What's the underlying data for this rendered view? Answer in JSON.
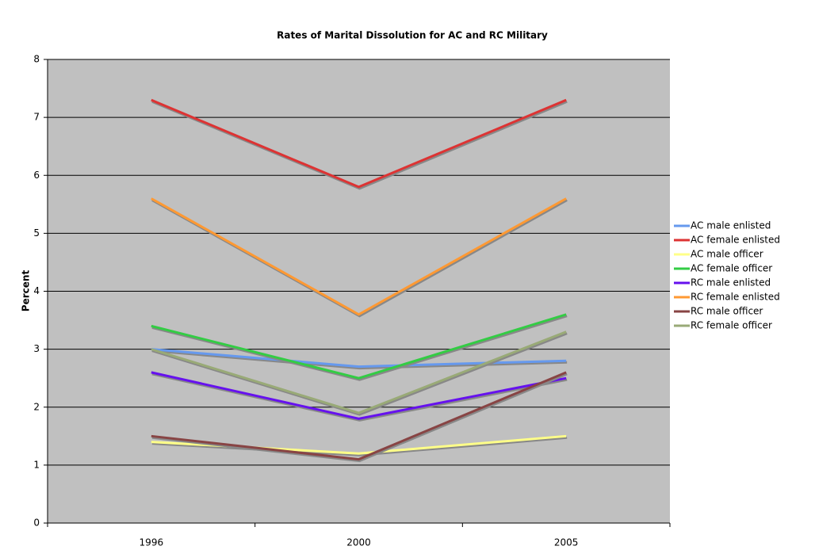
{
  "chart_data": {
    "type": "line",
    "title": "Rates of Marital Dissolution for AC and RC Military",
    "y_label": "Percent",
    "categories": [
      "1996",
      "2000",
      "2005"
    ],
    "series": [
      {
        "name": "AC male enlisted",
        "color": "#6699ee",
        "values": [
          3.0,
          2.7,
          2.8
        ]
      },
      {
        "name": "AC female enlisted",
        "color": "#dd3333",
        "values": [
          7.3,
          5.8,
          7.3
        ]
      },
      {
        "name": "AC male officer",
        "color": "#ffff88",
        "values": [
          1.4,
          1.2,
          1.5
        ]
      },
      {
        "name": "AC female officer",
        "color": "#33cc44",
        "values": [
          3.4,
          2.5,
          3.6
        ]
      },
      {
        "name": "RC male enlisted",
        "color": "#6611ee",
        "values": [
          2.6,
          1.8,
          2.5
        ]
      },
      {
        "name": "RC female enlisted",
        "color": "#ff9933",
        "values": [
          5.6,
          3.6,
          5.6
        ]
      },
      {
        "name": "RC male officer",
        "color": "#884444",
        "values": [
          1.5,
          1.1,
          2.6
        ]
      },
      {
        "name": "RC female officer",
        "color": "#99aa77",
        "values": [
          3.0,
          1.9,
          3.3
        ]
      }
    ],
    "ylim": [
      0,
      8
    ],
    "yticks": [
      0,
      1,
      2,
      3,
      4,
      5,
      6,
      7,
      8
    ],
    "grid": true,
    "legend": "right"
  }
}
